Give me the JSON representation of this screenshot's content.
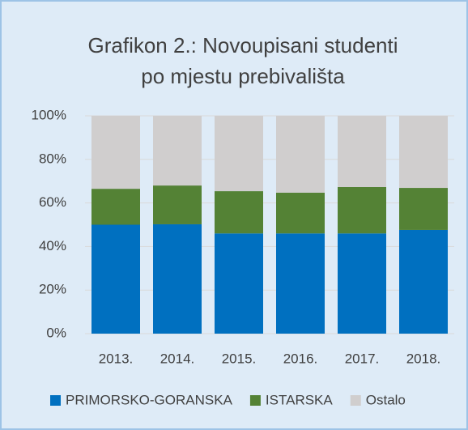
{
  "chart_data": {
    "type": "stacked_bar_100",
    "title": [
      "Grafikon 2.: Novoupisani studenti",
      "po mjestu prebivališta"
    ],
    "categories": [
      "2013.",
      "2014.",
      "2015.",
      "2016.",
      "2017.",
      "2018."
    ],
    "series": [
      {
        "name": "PRIMORSKO-GORANSKA",
        "color": "#0070c0",
        "values": [
          50,
          50.2,
          46,
          46,
          46,
          47.6
        ]
      },
      {
        "name": "ISTARSKA",
        "color": "#548235",
        "values": [
          16.5,
          17.8,
          19.4,
          18.7,
          21.3,
          19.3
        ]
      },
      {
        "name": "Ostalo",
        "color": "#d0cece",
        "values": [
          33.5,
          32,
          34.6,
          35.3,
          32.7,
          33.1
        ]
      }
    ],
    "ylim": [
      0,
      100
    ],
    "yticks": [
      {
        "value": 0,
        "label": "0%"
      },
      {
        "value": 20,
        "label": "20%"
      },
      {
        "value": 40,
        "label": "40%"
      },
      {
        "value": 60,
        "label": "60%"
      },
      {
        "value": 80,
        "label": "80%"
      },
      {
        "value": 100,
        "label": "100%"
      }
    ],
    "grid": true,
    "legend": "bottom"
  }
}
